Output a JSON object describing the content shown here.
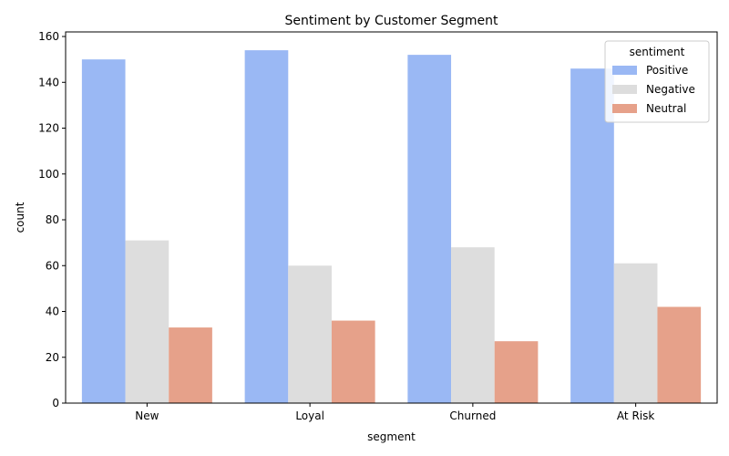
{
  "chart_data": {
    "type": "bar",
    "title": "Sentiment by Customer Segment",
    "xlabel": "segment",
    "ylabel": "count",
    "categories": [
      "New",
      "Loyal",
      "Churned",
      "At Risk"
    ],
    "series": [
      {
        "name": "Positive",
        "values": [
          150,
          154,
          152,
          146
        ],
        "color": "#9ab8f4"
      },
      {
        "name": "Negative",
        "values": [
          71,
          60,
          68,
          61
        ],
        "color": "#dddddd"
      },
      {
        "name": "Neutral",
        "values": [
          33,
          36,
          27,
          42
        ],
        "color": "#e6a18a"
      }
    ],
    "ylim": [
      0,
      162
    ],
    "yticks": [
      0,
      20,
      40,
      60,
      80,
      100,
      120,
      140,
      160
    ],
    "legend": {
      "title": "sentiment",
      "placement": "top-right"
    },
    "grid": false
  }
}
